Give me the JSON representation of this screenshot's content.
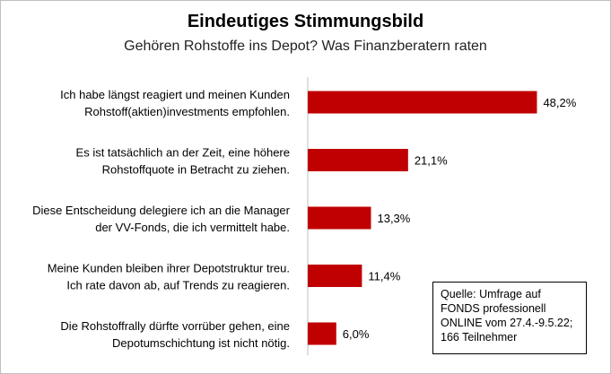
{
  "chart_data": {
    "type": "bar",
    "orientation": "horizontal",
    "title": "Eindeutiges Stimmungsbild",
    "subtitle": "Gehören Rohstoffe ins Depot? Was Finanzberatern raten",
    "categories": [
      [
        "Ich habe längst reagiert und meinen Kunden",
        "Rohstoff(aktien)investments empfohlen."
      ],
      [
        "Es ist tatsächlich an der Zeit, eine höhere",
        "Rohstoffquote in Betracht zu ziehen."
      ],
      [
        "Diese Entscheidung delegiere ich an die Manager",
        "der VV-Fonds, die ich vermittelt habe."
      ],
      [
        "Meine Kunden bleiben ihrer Depotstruktur treu.",
        "Ich rate davon ab, auf Trends zu reagieren."
      ],
      [
        "Die Rohstoffrally dürfte vorrüber gehen, eine",
        "Depotumschichtung ist nicht nötig."
      ]
    ],
    "values": [
      48.2,
      21.1,
      13.3,
      11.4,
      6.0
    ],
    "value_labels": [
      "48,2%",
      "21,1%",
      "13,3%",
      "11,4%",
      "6,0%"
    ],
    "unit": "%",
    "xlim": [
      0,
      50
    ],
    "grid": false,
    "legend": "none",
    "bar_color": "#c00000",
    "axis_color": "#bfbfbf"
  },
  "source": {
    "lines": [
      "Quelle: Umfrage auf",
      "FONDS professionell",
      "ONLINE vom 27.4.-9.5.22;",
      "166 Teilnehmer"
    ]
  }
}
